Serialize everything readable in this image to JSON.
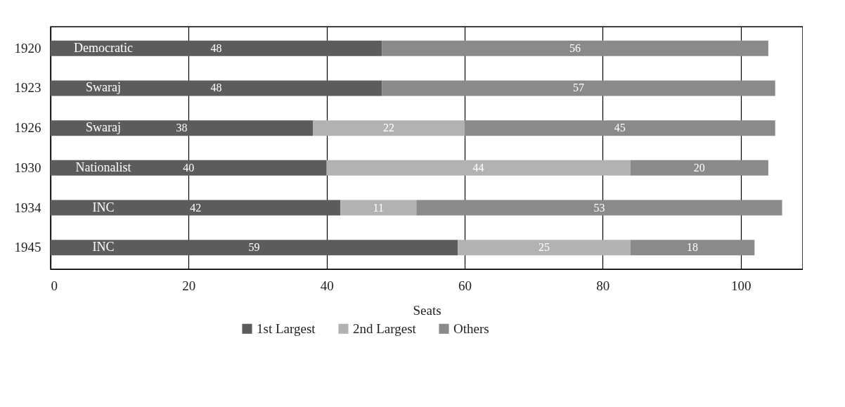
{
  "chart_data": {
    "type": "bar",
    "orientation": "horizontal",
    "stacked": true,
    "xlabel": "Seats",
    "categories": [
      "1920",
      "1923",
      "1926",
      "1930",
      "1934",
      "1945"
    ],
    "series": [
      {
        "name": "1st Largest",
        "color": "#5c5c5c",
        "values": [
          48,
          48,
          38,
          40,
          42,
          59
        ]
      },
      {
        "name": "2nd Largest",
        "color": "#b2b2b2",
        "values": [
          null,
          null,
          22,
          44,
          11,
          25
        ]
      },
      {
        "name": "Others",
        "color": "#8a8a8a",
        "values": [
          56,
          57,
          45,
          20,
          53,
          18
        ]
      }
    ],
    "data_labels": true,
    "annotations": [
      "Democratic",
      "Swaraj",
      "Swaraj",
      "Nationalist",
      "INC",
      "INC"
    ],
    "xlim": [
      0,
      109
    ],
    "xticks": [
      0,
      20,
      40,
      60,
      80,
      100
    ],
    "grid": "x",
    "legend": "bottom"
  }
}
